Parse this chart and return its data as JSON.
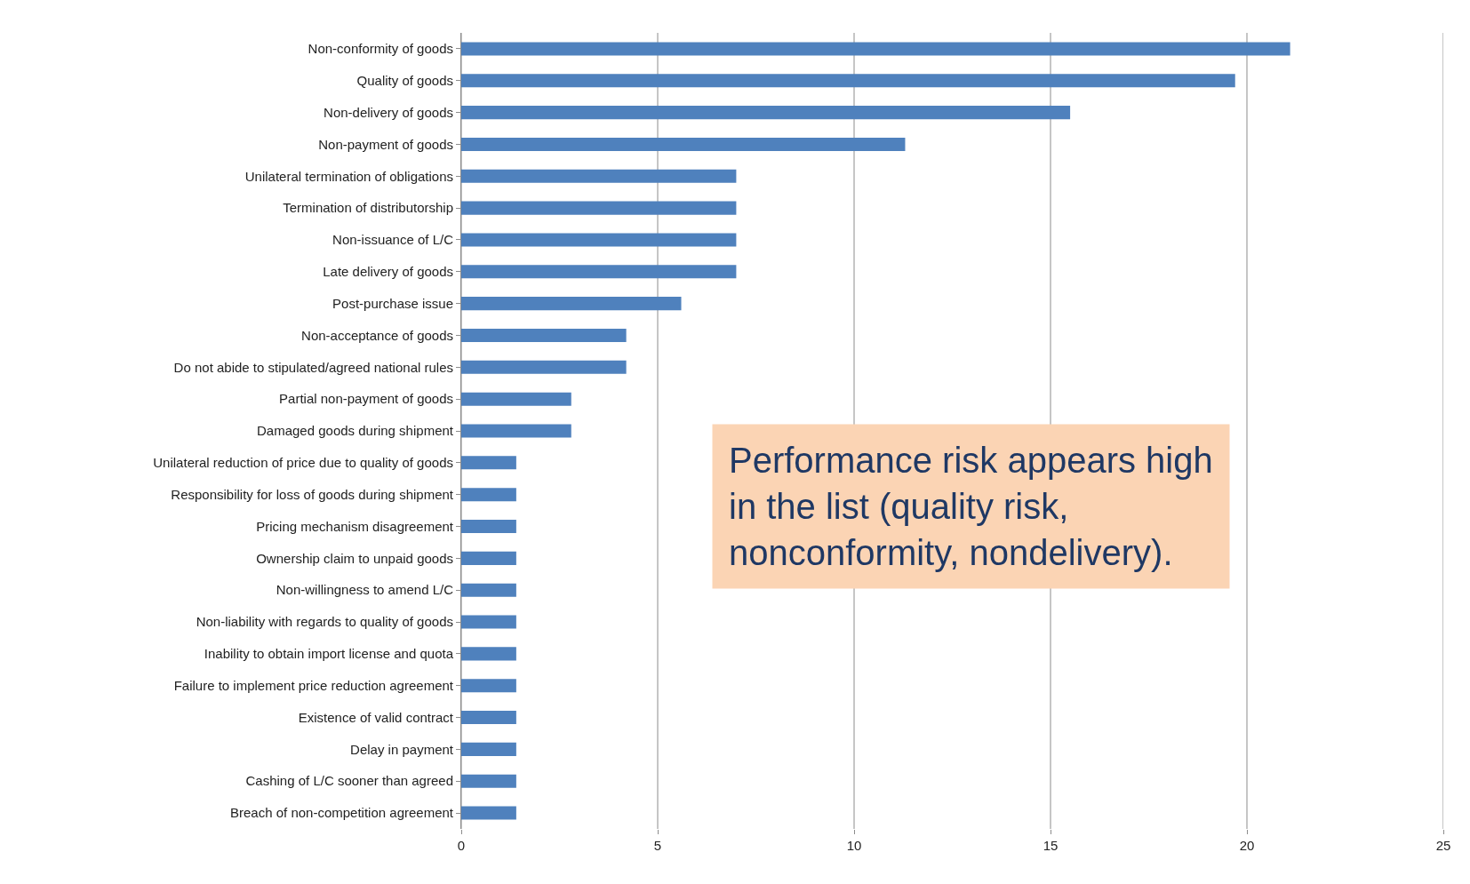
{
  "chart_data": {
    "type": "bar",
    "orientation": "horizontal",
    "categories": [
      "Non-conformity of goods",
      "Quality of goods",
      "Non-delivery of goods",
      "Non-payment of goods",
      "Unilateral termination of obligations",
      "Termination of distributorship",
      "Non-issuance of L/C",
      "Late delivery of goods",
      "Post-purchase issue",
      "Non-acceptance of goods",
      "Do not abide to stipulated/agreed national rules",
      "Partial non-payment of goods",
      "Damaged goods during shipment",
      "Unilateral reduction of price due to quality of goods",
      "Responsibility for loss of goods during shipment",
      "Pricing mechanism disagreement",
      "Ownership claim to unpaid goods",
      "Non-willingness to amend L/C",
      "Non-liability with regards to quality of goods",
      "Inability to obtain import license and quota",
      "Failure to implement price reduction agreement",
      "Existence of valid contract",
      "Delay in payment",
      "Cashing of L/C sooner than agreed",
      "Breach of non-competition agreement"
    ],
    "values": [
      21.1,
      19.7,
      15.5,
      11.3,
      7.0,
      7.0,
      7.0,
      7.0,
      5.6,
      4.2,
      4.2,
      2.8,
      2.8,
      1.4,
      1.4,
      1.4,
      1.4,
      1.4,
      1.4,
      1.4,
      1.4,
      1.4,
      1.4,
      1.4,
      1.4
    ],
    "color": "#4f81bd",
    "xlim": [
      0,
      25
    ],
    "xticks": [
      0,
      5,
      10,
      15,
      20,
      25
    ],
    "grid": "x",
    "annotations": [
      "Performance risk appears high in the list (quality risk, nonconformity, nondelivery)."
    ]
  }
}
